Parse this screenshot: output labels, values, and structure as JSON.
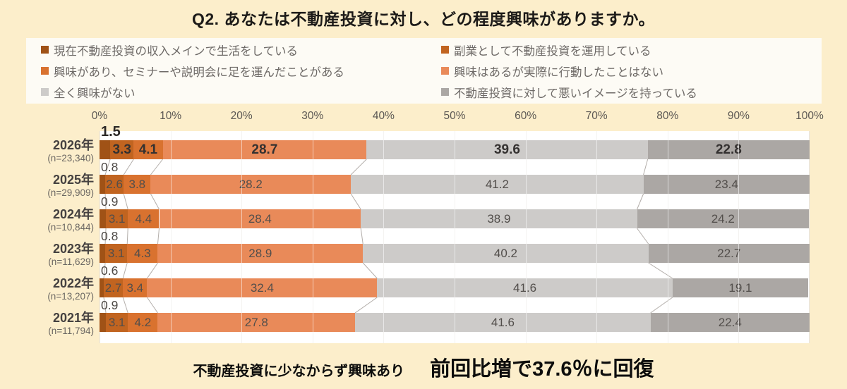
{
  "title": "Q2. あなたは不動産投資に対し、どの程度興味がありますか。",
  "footer": {
    "lead": "不動産投資に少なからず興味あり",
    "highlight": "前回比増で37.6％に回復"
  },
  "colors": {
    "page_background": "#FCEECB",
    "legend_panel": "#FDFBF5",
    "plot_background": "#FFFFFF",
    "gridline": "#E7E4E0",
    "connector_line": "#B3AEAA"
  },
  "chart_data": {
    "type": "bar",
    "stacked": true,
    "orientation": "horizontal",
    "title": "Q2. あなたは不動産投資に対し、どの程度興味がありますか。",
    "xlim": [
      0,
      100
    ],
    "x_ticks": [
      "0%",
      "10%",
      "20%",
      "30%",
      "40%",
      "50%",
      "60%",
      "70%",
      "80%",
      "90%",
      "100%"
    ],
    "grid": true,
    "legend_position": "top",
    "categories": [
      "2026年",
      "2025年",
      "2024年",
      "2023年",
      "2022年",
      "2021年"
    ],
    "category_n": [
      "(n=23,340)",
      "(n=29,909)",
      "(n=10,844)",
      "(n=11,629)",
      "(n=13,207)",
      "(n=11,794)"
    ],
    "series": [
      {
        "name": "現在不動産投資の収入メインで生活をしている",
        "color": "#A05216",
        "values": [
          1.5,
          0.8,
          0.9,
          0.8,
          0.6,
          0.9
        ]
      },
      {
        "name": "副業として不動産投資を運用している",
        "color": "#C16420",
        "values": [
          3.3,
          2.6,
          3.1,
          3.1,
          2.7,
          3.1
        ]
      },
      {
        "name": "興味があり、セミナーや説明会に足を運んだことがある",
        "color": "#D9722F",
        "values": [
          4.1,
          3.8,
          4.4,
          4.3,
          3.4,
          4.2
        ]
      },
      {
        "name": "興味はあるが実際に行動したことはない",
        "color": "#E98A59",
        "values": [
          28.7,
          28.2,
          28.4,
          28.9,
          32.4,
          27.8
        ]
      },
      {
        "name": "全く興味がない",
        "color": "#CDCBC9",
        "values": [
          39.6,
          41.2,
          38.9,
          40.2,
          41.6,
          41.6
        ]
      },
      {
        "name": "不動産投資に対して悪いイメージを持っている",
        "color": "#ABA7A4",
        "values": [
          22.8,
          23.4,
          24.2,
          22.7,
          19.1,
          22.4
        ]
      }
    ]
  }
}
